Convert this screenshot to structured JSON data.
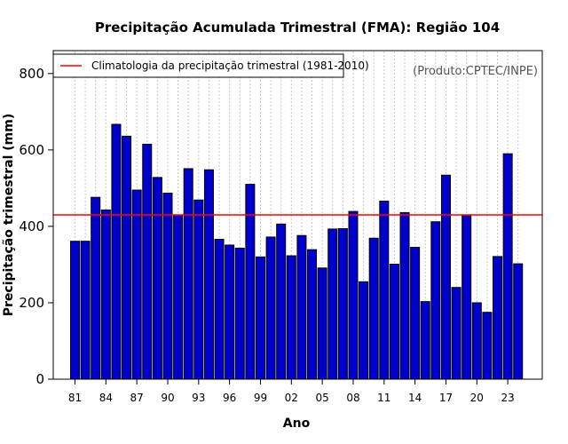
{
  "chart_data": {
    "type": "bar",
    "title": "Precipitação Acumulada Trimestral (FMA): Região 104",
    "xlabel": "Ano",
    "ylabel": "Precipitação trimestral (mm)",
    "ylim": [
      0,
      860
    ],
    "yticks": [
      0,
      200,
      400,
      600,
      800
    ],
    "grid": "vertical dotted",
    "bar_color": "#0000CD",
    "categories": [
      1981,
      1982,
      1983,
      1984,
      1985,
      1986,
      1987,
      1988,
      1989,
      1990,
      1991,
      1992,
      1993,
      1994,
      1995,
      1996,
      1997,
      1998,
      1999,
      2000,
      2001,
      2002,
      2003,
      2004,
      2005,
      2006,
      2007,
      2008,
      2009,
      2010,
      2011,
      2012,
      2013,
      2014,
      2015,
      2016,
      2017,
      2018,
      2019,
      2020,
      2021,
      2022,
      2023,
      2024
    ],
    "values": [
      361,
      361,
      476,
      443,
      667,
      636,
      495,
      615,
      528,
      487,
      430,
      551,
      469,
      548,
      366,
      351,
      343,
      510,
      320,
      372,
      406,
      323,
      376,
      339,
      291,
      393,
      394,
      439,
      255,
      369,
      466,
      301,
      436,
      345,
      203,
      412,
      534,
      240,
      428,
      200,
      175,
      321,
      590,
      302
    ],
    "tick_labels": [
      {
        "year": 1981,
        "label": "81"
      },
      {
        "year": 1984,
        "label": "84"
      },
      {
        "year": 1987,
        "label": "87"
      },
      {
        "year": 1990,
        "label": "90"
      },
      {
        "year": 1993,
        "label": "93"
      },
      {
        "year": 1996,
        "label": "96"
      },
      {
        "year": 1999,
        "label": "99"
      },
      {
        "year": 2002,
        "label": "02"
      },
      {
        "year": 2005,
        "label": "05"
      },
      {
        "year": 2008,
        "label": "08"
      },
      {
        "year": 2011,
        "label": "11"
      },
      {
        "year": 2014,
        "label": "14"
      },
      {
        "year": 2017,
        "label": "17"
      },
      {
        "year": 2020,
        "label": "20"
      },
      {
        "year": 2023,
        "label": "23"
      }
    ],
    "reference_line": {
      "value": 430,
      "color": "#FF0000",
      "label": "Climatologia da precipitação trimestral (1981-2010)"
    },
    "legend_position": "top-left",
    "credit": "(Produto:CPTEC/INPE)"
  }
}
